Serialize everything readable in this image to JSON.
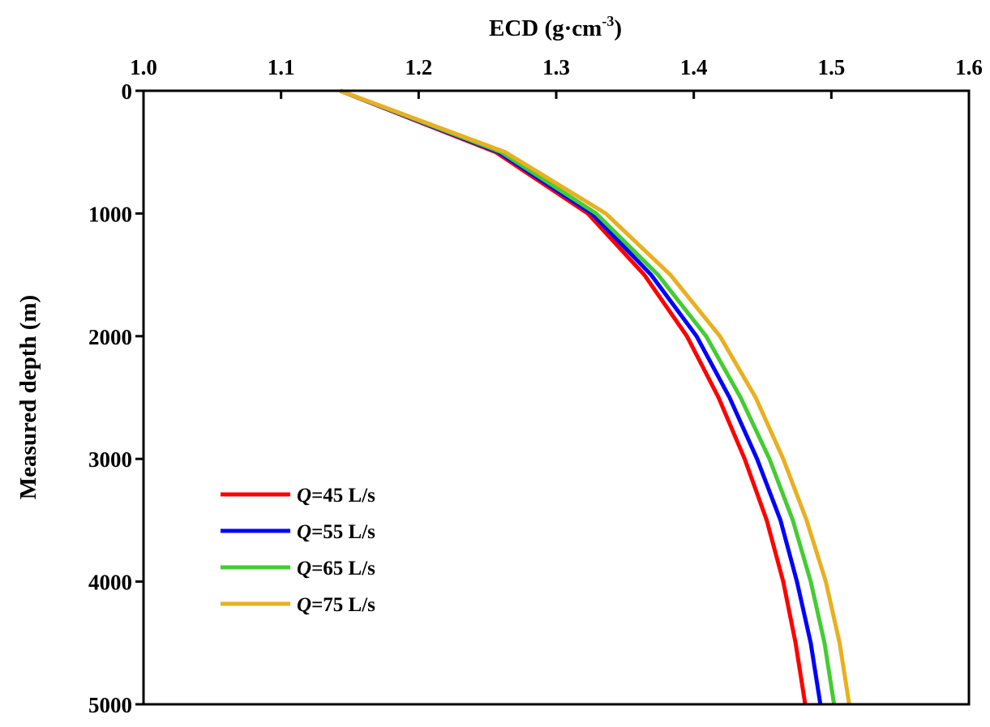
{
  "chart_data": {
    "type": "line",
    "xlabel_main": "ECD (g·cm",
    "xlabel_sup": "-3",
    "xlabel_end": ")",
    "ylabel": "Measured depth (m)",
    "xlim": [
      1.0,
      1.6
    ],
    "ylim": [
      0,
      5000
    ],
    "y_inverted": true,
    "x_axis_position": "top",
    "grid": false,
    "legend_position": "lower-left",
    "x_ticks": [
      "1.0",
      "1.1",
      "1.2",
      "1.3",
      "1.4",
      "1.5",
      "1.6"
    ],
    "y_ticks": [
      "0",
      "1000",
      "2000",
      "3000",
      "4000",
      "5000"
    ],
    "series": [
      {
        "label_var": "Q",
        "label_rest": "=45 L/s",
        "color": "#ff0000",
        "points": [
          [
            1.143,
            0
          ],
          [
            1.256,
            500
          ],
          [
            1.323,
            1000
          ],
          [
            1.364,
            1500
          ],
          [
            1.395,
            2000
          ],
          [
            1.418,
            2500
          ],
          [
            1.437,
            3000
          ],
          [
            1.453,
            3500
          ],
          [
            1.465,
            4000
          ],
          [
            1.474,
            4500
          ],
          [
            1.481,
            5000
          ]
        ]
      },
      {
        "label_var": "Q",
        "label_rest": "=55 L/s",
        "color": "#0000ff",
        "points": [
          [
            1.143,
            0
          ],
          [
            1.258,
            500
          ],
          [
            1.326,
            1000
          ],
          [
            1.369,
            1500
          ],
          [
            1.402,
            2000
          ],
          [
            1.426,
            2500
          ],
          [
            1.446,
            3000
          ],
          [
            1.463,
            3500
          ],
          [
            1.475,
            4000
          ],
          [
            1.485,
            4500
          ],
          [
            1.492,
            5000
          ]
        ]
      },
      {
        "label_var": "Q",
        "label_rest": "=65 L/s",
        "color": "#44cc33",
        "points": [
          [
            1.143,
            0
          ],
          [
            1.26,
            500
          ],
          [
            1.329,
            1000
          ],
          [
            1.374,
            1500
          ],
          [
            1.409,
            2000
          ],
          [
            1.434,
            2500
          ],
          [
            1.455,
            3000
          ],
          [
            1.472,
            3500
          ],
          [
            1.485,
            4000
          ],
          [
            1.495,
            4500
          ],
          [
            1.502,
            5000
          ]
        ]
      },
      {
        "label_var": "Q",
        "label_rest": "=75 L/s",
        "color": "#e8b020",
        "points": [
          [
            1.143,
            0
          ],
          [
            1.263,
            500
          ],
          [
            1.336,
            1000
          ],
          [
            1.383,
            1500
          ],
          [
            1.419,
            2000
          ],
          [
            1.445,
            2500
          ],
          [
            1.465,
            3000
          ],
          [
            1.482,
            3500
          ],
          [
            1.496,
            4000
          ],
          [
            1.506,
            4500
          ],
          [
            1.513,
            5000
          ]
        ]
      }
    ]
  }
}
